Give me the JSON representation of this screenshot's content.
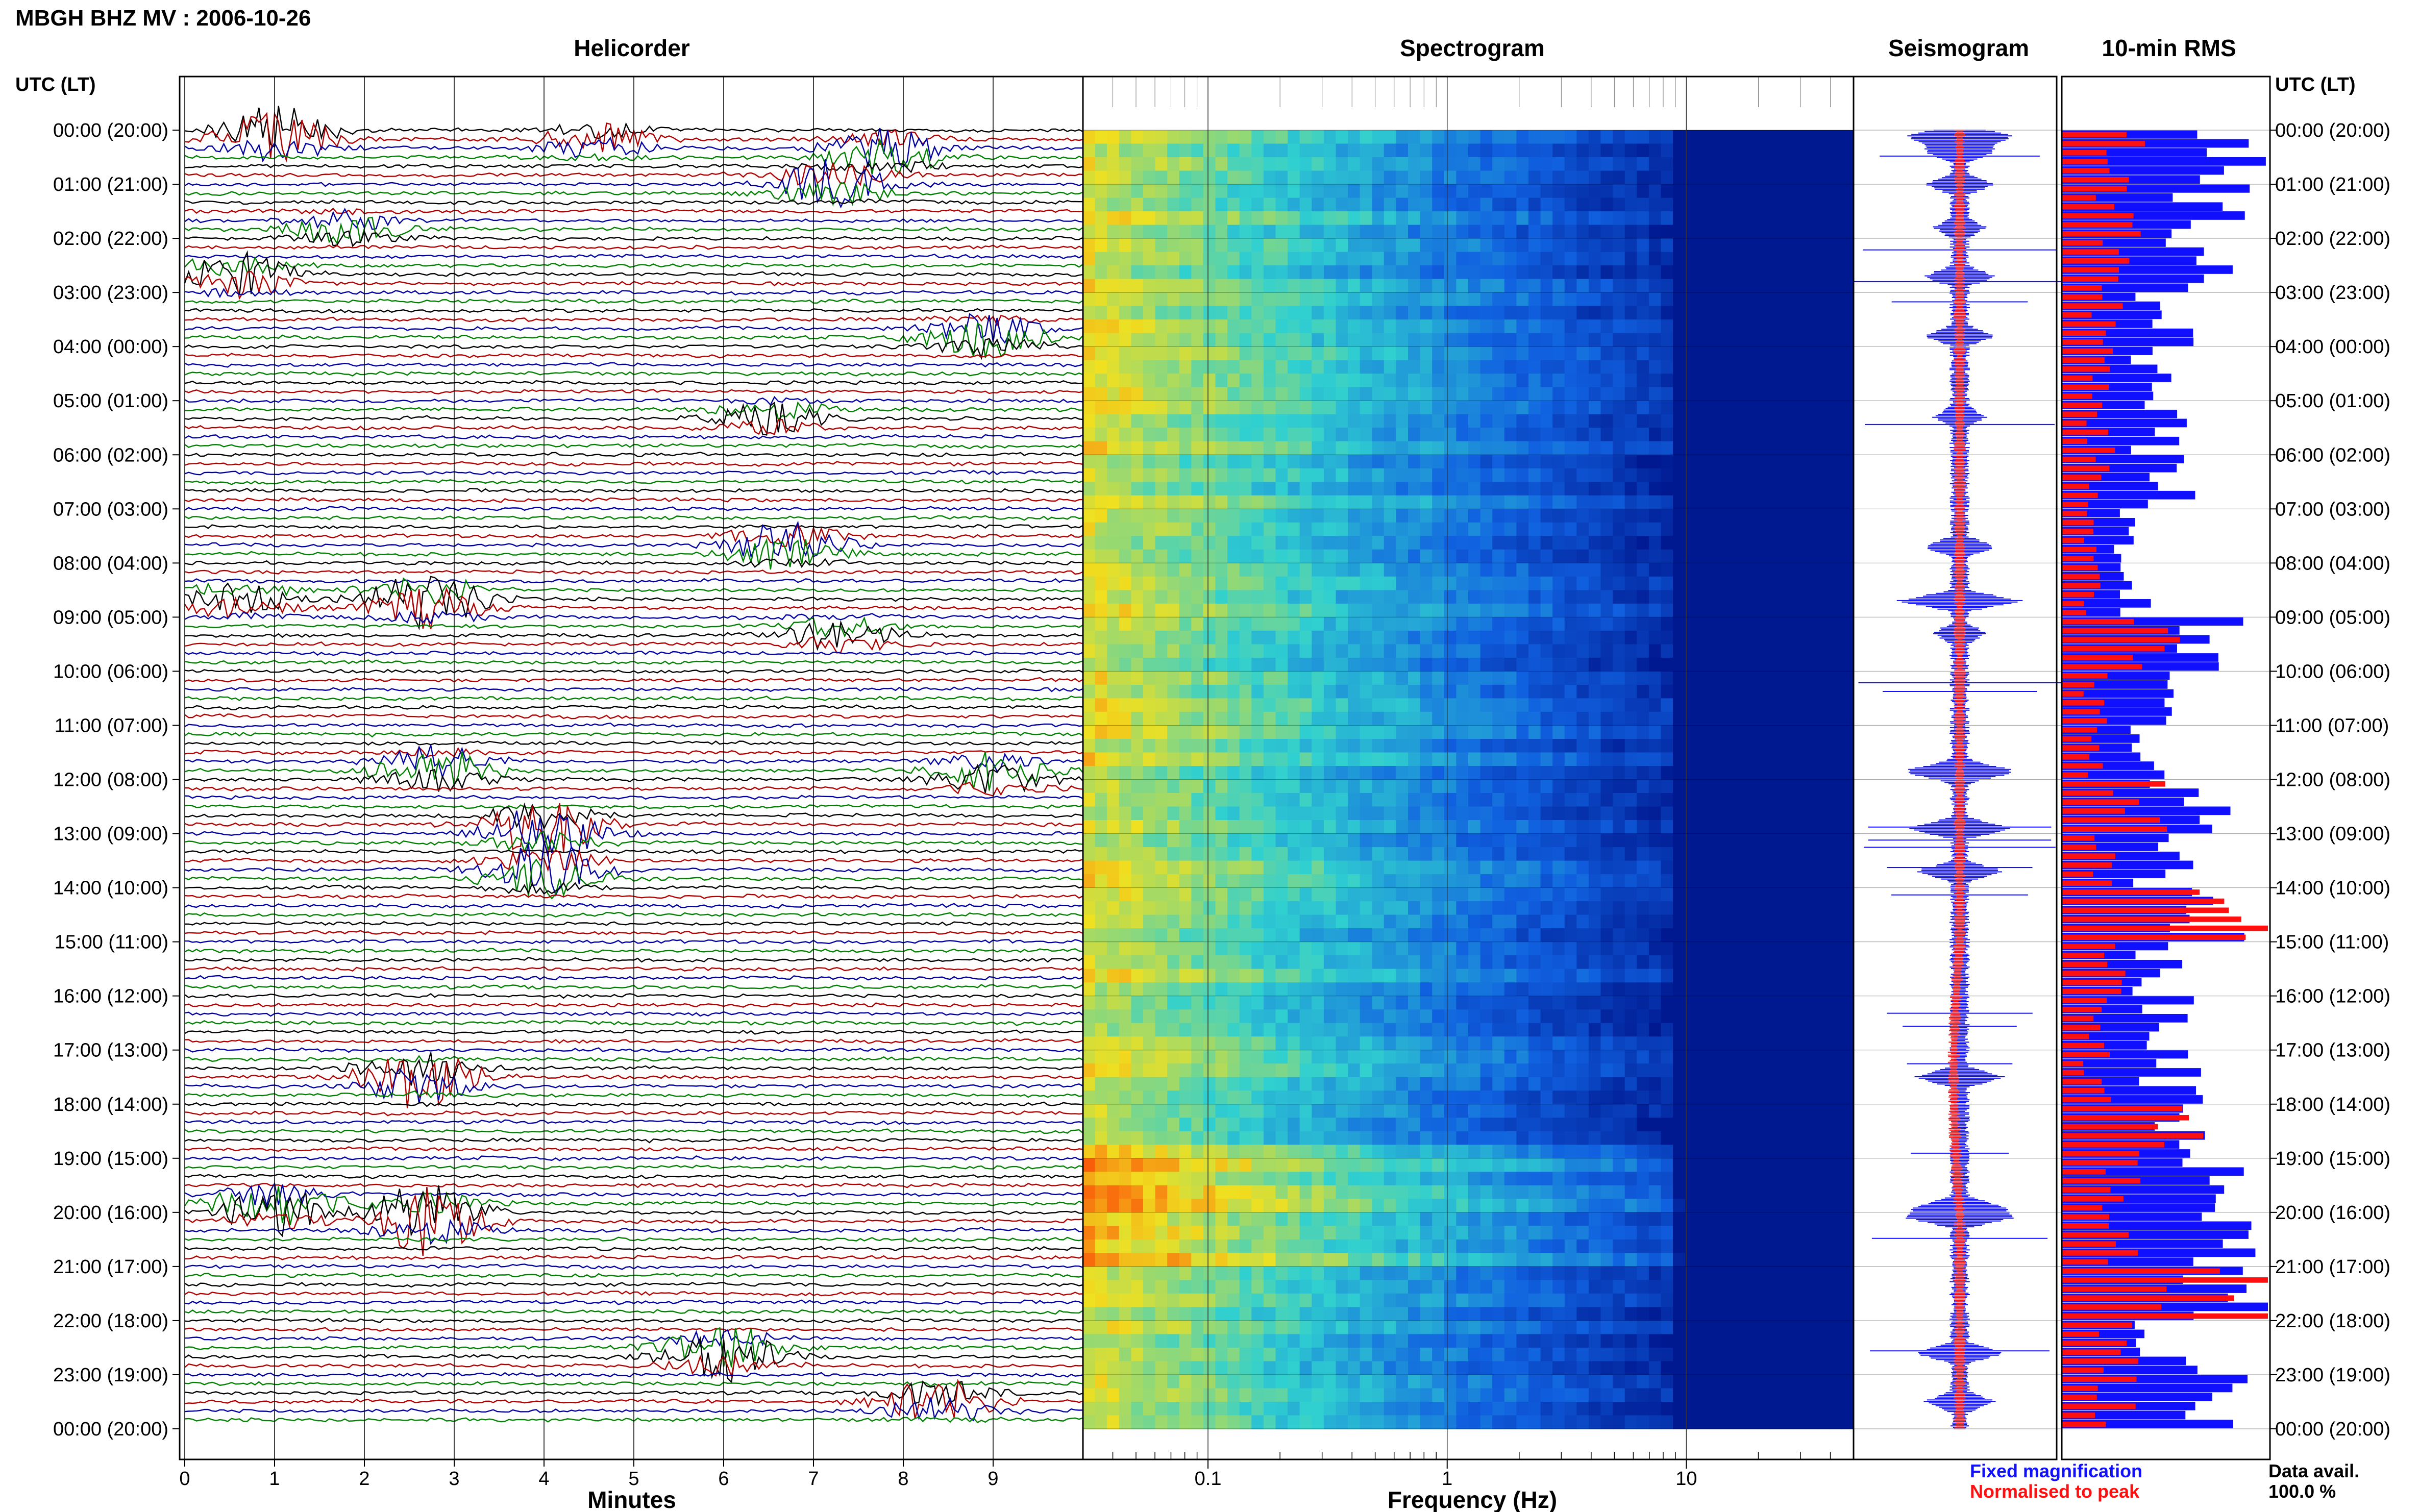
{
  "title": "MBGH BHZ MV : 2006-10-26",
  "time_axis_label": "UTC (LT)",
  "time_labels": [
    "00:00 (20:00)",
    "01:00 (21:00)",
    "02:00 (22:00)",
    "03:00 (23:00)",
    "04:00 (00:00)",
    "05:00 (01:00)",
    "06:00 (02:00)",
    "07:00 (03:00)",
    "08:00 (04:00)",
    "09:00 (05:00)",
    "10:00 (06:00)",
    "11:00 (07:00)",
    "12:00 (08:00)",
    "13:00 (09:00)",
    "14:00 (10:00)",
    "15:00 (11:00)",
    "16:00 (12:00)",
    "17:00 (13:00)",
    "18:00 (14:00)",
    "19:00 (15:00)",
    "20:00 (16:00)",
    "21:00 (17:00)",
    "22:00 (18:00)",
    "23:00 (19:00)",
    "00:00 (20:00)"
  ],
  "panels": {
    "helicorder": "Helicorder",
    "spectrogram": "Spectrogram",
    "seismogram": "Seismogram",
    "rms": "10-min RMS"
  },
  "legend": {
    "fixed": "Fixed magnification",
    "normalised": "Normalised to peak",
    "fixed_color": "#1010ff",
    "normalised_color": "#ff1010"
  },
  "data_avail": {
    "label": "Data avail.",
    "value": "100.0 %"
  },
  "colors": {
    "trace_cycle": [
      "#000000",
      "#b00000",
      "#0000a0",
      "#008000"
    ],
    "spectrogram_ramp": [
      "#ff2000",
      "#f0e020",
      "#30d0d0",
      "#1060e0",
      "#001890"
    ]
  },
  "chart_data": [
    {
      "type": "line",
      "name": "Helicorder",
      "xlabel": "Minutes",
      "xlim": [
        0,
        10
      ],
      "x_ticks": [
        0,
        1,
        2,
        3,
        4,
        5,
        6,
        7,
        8,
        9
      ],
      "rows": 144,
      "row_minutes": 10,
      "events": [
        {
          "hour": 0.1,
          "minute": 1.0,
          "strength": 4
        },
        {
          "hour": 0.2,
          "minute": 4.6,
          "strength": 2
        },
        {
          "hour": 0.4,
          "minute": 7.8,
          "strength": 3
        },
        {
          "hour": 1.0,
          "minute": 7.2,
          "strength": 3
        },
        {
          "hour": 1.8,
          "minute": 1.8,
          "strength": 2
        },
        {
          "hour": 2.7,
          "minute": 0.6,
          "strength": 3
        },
        {
          "hour": 3.8,
          "minute": 8.9,
          "strength": 3
        },
        {
          "hour": 5.3,
          "minute": 6.5,
          "strength": 2
        },
        {
          "hour": 7.7,
          "minute": 6.7,
          "strength": 3
        },
        {
          "hour": 8.7,
          "minute": 2.7,
          "strength": 4
        },
        {
          "hour": 8.7,
          "minute": 0.6,
          "strength": 2
        },
        {
          "hour": 9.3,
          "minute": 7.3,
          "strength": 2
        },
        {
          "hour": 11.8,
          "minute": 2.8,
          "strength": 3
        },
        {
          "hour": 11.9,
          "minute": 9.0,
          "strength": 3
        },
        {
          "hour": 12.9,
          "minute": 4.0,
          "strength": 5
        },
        {
          "hour": 13.7,
          "minute": 4.0,
          "strength": 4
        },
        {
          "hour": 17.5,
          "minute": 2.6,
          "strength": 4
        },
        {
          "hour": 19.9,
          "minute": 1.0,
          "strength": 4
        },
        {
          "hour": 20.1,
          "minute": 2.7,
          "strength": 5
        },
        {
          "hour": 22.6,
          "minute": 6.0,
          "strength": 4
        },
        {
          "hour": 23.5,
          "minute": 8.4,
          "strength": 3
        }
      ]
    },
    {
      "type": "heatmap",
      "name": "Spectrogram",
      "xlabel": "Frequency (Hz)",
      "x_scale": "log",
      "xlim": [
        0.03,
        50
      ],
      "x_ticks": [
        0.1,
        1,
        10
      ],
      "x_tick_labels": [
        "0.1",
        "1",
        "10"
      ]
    },
    {
      "type": "line",
      "name": "Seismogram",
      "series": [
        {
          "name": "Fixed magnification",
          "color": "#1010ff"
        },
        {
          "name": "Normalised to peak",
          "color": "#ff1010"
        }
      ]
    },
    {
      "type": "bar",
      "name": "10-min RMS",
      "bins": 144,
      "series": [
        {
          "name": "Fixed magnification",
          "color": "#1010ff",
          "hourly_level": [
            0.9,
            0.85,
            0.75,
            0.55,
            0.5,
            0.55,
            0.55,
            0.35,
            0.45,
            0.9,
            0.55,
            0.5,
            0.7,
            0.55,
            0.85,
            0.55,
            0.55,
            0.6,
            0.6,
            0.75,
            0.8,
            0.85,
            0.55,
            0.8
          ]
        },
        {
          "name": "Normalised to peak",
          "color": "#ff1010",
          "hourly_level": [
            0.35,
            0.3,
            0.3,
            0.25,
            0.2,
            0.2,
            0.2,
            0.15,
            0.2,
            0.45,
            0.2,
            0.2,
            0.4,
            0.2,
            0.98,
            0.25,
            0.2,
            0.2,
            0.6,
            0.3,
            0.35,
            0.95,
            0.3,
            0.3
          ]
        }
      ]
    }
  ]
}
